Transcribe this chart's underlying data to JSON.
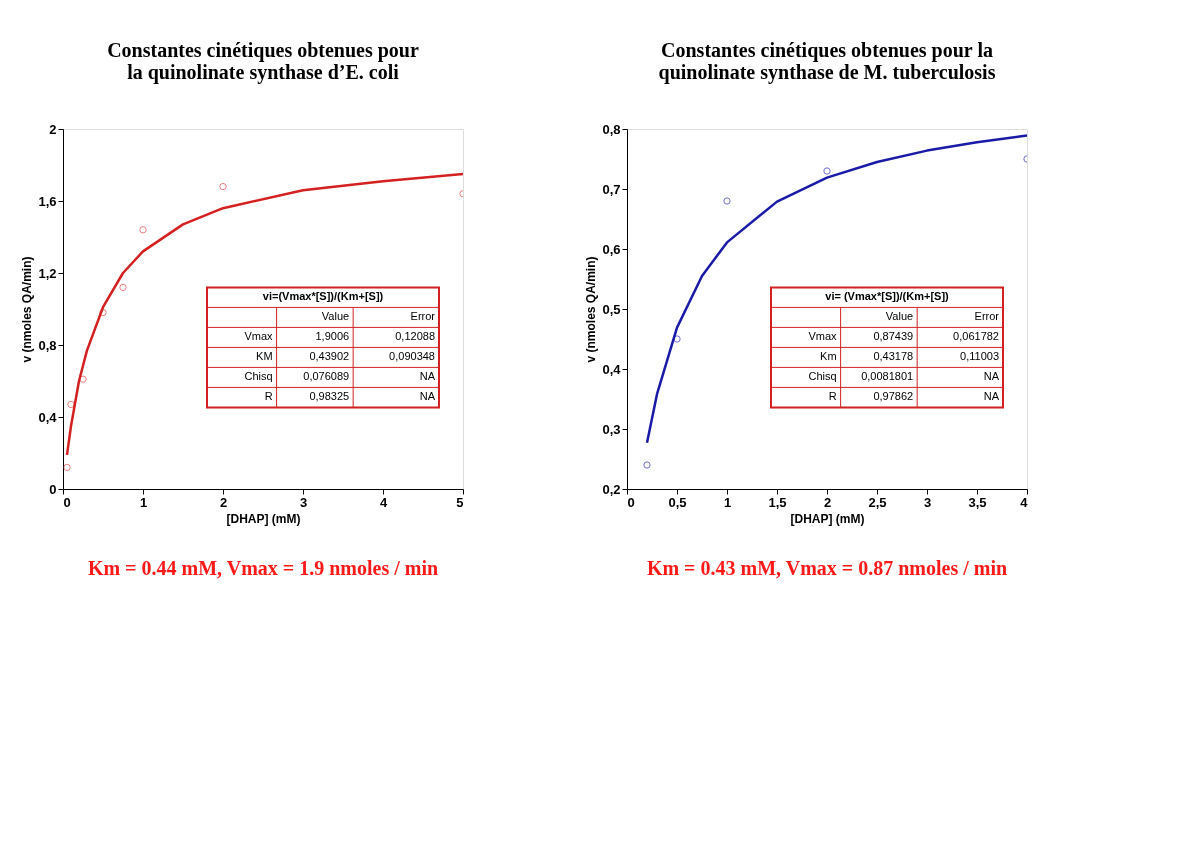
{
  "chart_data": [
    {
      "type": "scatter",
      "title": "Constantes cinétiques obtenues pour la quinolinate synthase d’E. coli",
      "xlabel": "[DHAP] (mM)",
      "ylabel": "v (nmoles QA/min)",
      "xlim": [
        0,
        5
      ],
      "xticks": [
        0,
        1,
        2,
        3,
        4,
        5
      ],
      "ylim": [
        0,
        2
      ],
      "yticks": [
        0,
        {
          "value": 0.4,
          "label": "0,4"
        },
        {
          "value": 0.8,
          "label": "0,8"
        },
        {
          "value": 1.2,
          "label": "1,2"
        },
        {
          "value": 1.6,
          "label": "1,6"
        },
        2
      ],
      "grid": false,
      "series": [
        {
          "marker": "circle",
          "color": "#e04848",
          "x": [
            0.05,
            0.1,
            0.25,
            0.5,
            0.75,
            1,
            2,
            5
          ],
          "values": [
            0.12,
            0.47,
            0.61,
            0.98,
            1.12,
            1.44,
            1.68,
            1.64
          ]
        },
        {
          "type": "line",
          "line_style": "solid",
          "color": "#d42020",
          "x": [
            0.05,
            0.1,
            0.2,
            0.3,
            0.5,
            0.75,
            1,
            1.5,
            2,
            3,
            4,
            5
          ],
          "values": [
            0.19,
            0.35,
            0.6,
            0.77,
            1.01,
            1.2,
            1.32,
            1.47,
            1.56,
            1.66,
            1.71,
            1.75
          ]
        }
      ],
      "annotations": [
        "vi=(Vmax*[S])/(Km+[S])",
        "Value",
        "Error",
        "Vmax",
        "1,9006",
        "0,12088",
        "KM",
        "0,43902",
        "0,090348",
        "Chisq",
        "0,076089",
        "NA",
        "R",
        "0,98325",
        "NA",
        "Km = 0.44 mM, Vmax = 1.9 nmoles / min"
      ]
    },
    {
      "type": "scatter",
      "title": "Constantes cinétiques obtenues pour la quinolinate synthase de M. tuberculosis",
      "xlabel": "[DHAP] (mM)",
      "ylabel": "v (nmoles QA/min)",
      "xlim": [
        0,
        4
      ],
      "xticks": [
        0,
        {
          "value": 0.5,
          "label": "0,5"
        },
        1,
        {
          "value": 1.5,
          "label": "1,5"
        },
        2,
        {
          "value": 2.5,
          "label": "2,5"
        },
        3,
        {
          "value": 3.5,
          "label": "3,5"
        },
        4
      ],
      "ylim": [
        0.2,
        0.8
      ],
      "yticks": [
        {
          "value": 0.2,
          "label": "0,2"
        },
        {
          "value": 0.3,
          "label": "0,3"
        },
        {
          "value": 0.4,
          "label": "0,4"
        },
        {
          "value": 0.5,
          "label": "0,5"
        },
        {
          "value": 0.6,
          "label": "0,6"
        },
        {
          "value": 0.7,
          "label": "0,7"
        },
        {
          "value": 0.8,
          "label": "0,8"
        }
      ],
      "grid": false,
      "series": [
        {
          "marker": "circle",
          "color": "#3030c0",
          "x": [
            0.2,
            0.5,
            1,
            2,
            4
          ],
          "values": [
            0.24,
            0.45,
            0.68,
            0.73,
            0.75
          ]
        },
        {
          "type": "line",
          "line_style": "solid",
          "color": "#1a1aa8",
          "x": [
            0.2,
            0.3,
            0.5,
            0.75,
            1,
            1.5,
            2,
            2.5,
            3,
            3.5,
            4
          ],
          "values": [
            0.277,
            0.358,
            0.469,
            0.555,
            0.611,
            0.679,
            0.719,
            0.745,
            0.764,
            0.778,
            0.789
          ]
        }
      ],
      "annotations": [
        "vi= (Vmax*[S])/(Km+[S])",
        "Value",
        "Error",
        "Vmax",
        "0,87439",
        "0,061782",
        "Km",
        "0,43178",
        "0,11003",
        "Chisq",
        "0,0081801",
        "NA",
        "R",
        "0,97862",
        "NA",
        "Km =  0.43 mM, Vmax = 0.87 nmoles / min"
      ]
    }
  ]
}
